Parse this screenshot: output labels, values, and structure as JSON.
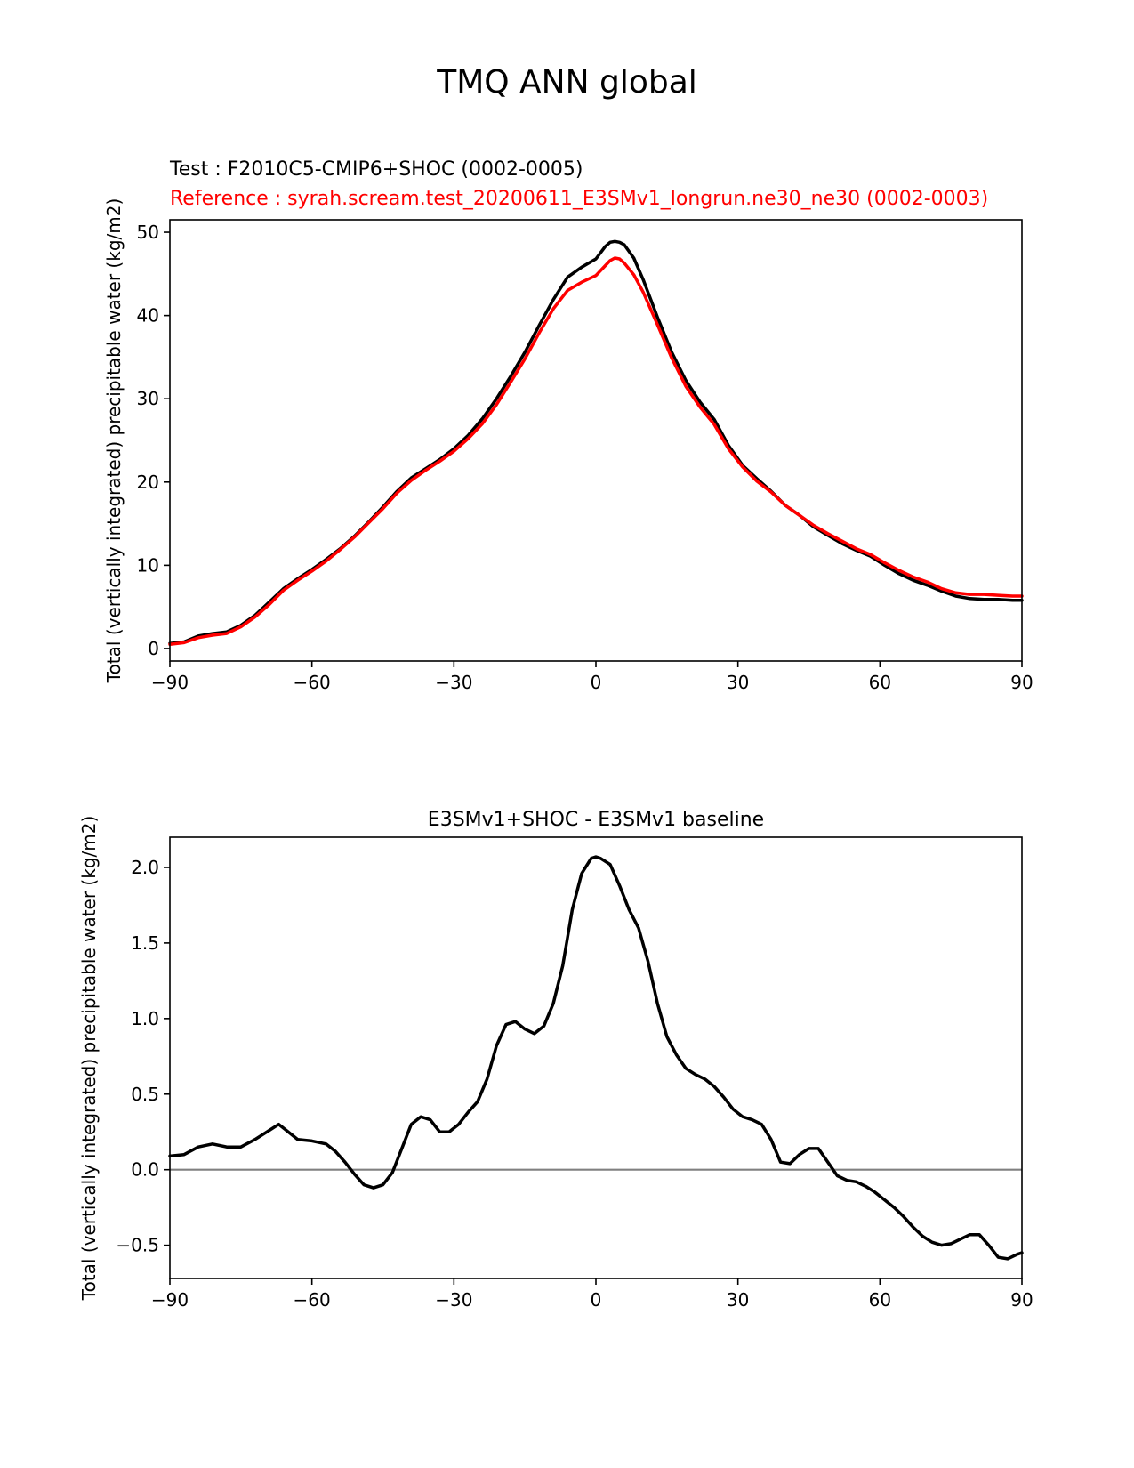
{
  "figure": {
    "title": "TMQ ANN global"
  },
  "colors": {
    "test": "#000000",
    "reference": "#ff0000",
    "zero_line": "#808080",
    "axes": "#000000"
  },
  "chart_data": [
    {
      "type": "line",
      "title_test": "Test : F2010C5-CMIP6+SHOC (0002-0005)",
      "title_reference": "Reference : syrah.scream.test_20200611_E3SMv1_longrun.ne30_ne30 (0002-0003)",
      "xlabel": "",
      "ylabel": "Total (vertically integrated) precipitable water (kg/m2)",
      "xlim": [
        -90,
        90
      ],
      "ylim": [
        -1.5,
        51.5
      ],
      "xticks": [
        -90,
        -60,
        -30,
        0,
        30,
        60,
        90
      ],
      "xtick_labels": [
        "−90",
        "−60",
        "−30",
        "0",
        "30",
        "60",
        "90"
      ],
      "yticks": [
        0,
        10,
        20,
        30,
        40,
        50
      ],
      "ytick_labels": [
        "0",
        "10",
        "20",
        "30",
        "40",
        "50"
      ],
      "series": [
        {
          "name": "Test",
          "color": "#000000",
          "x": [
            -90,
            -87,
            -84,
            -81,
            -78,
            -75,
            -72,
            -69,
            -66,
            -63,
            -60,
            -57,
            -54,
            -51,
            -48,
            -45,
            -42,
            -39,
            -36,
            -33,
            -30,
            -27,
            -24,
            -21,
            -18,
            -15,
            -12,
            -9,
            -6,
            -3,
            0,
            2,
            3,
            4,
            5,
            6,
            8,
            10,
            13,
            16,
            19,
            22,
            25,
            28,
            31,
            34,
            37,
            40,
            43,
            46,
            49,
            52,
            55,
            58,
            61,
            64,
            67,
            70,
            73,
            76,
            79,
            82,
            85,
            88,
            90
          ],
          "y": [
            0.6,
            0.8,
            1.5,
            1.8,
            2.0,
            2.8,
            4.0,
            5.6,
            7.2,
            8.4,
            9.5,
            10.7,
            12.0,
            13.5,
            15.2,
            17.0,
            18.9,
            20.5,
            21.6,
            22.7,
            24.0,
            25.6,
            27.6,
            30.0,
            32.7,
            35.6,
            38.8,
            41.9,
            44.6,
            45.8,
            46.8,
            48.3,
            48.8,
            48.9,
            48.8,
            48.5,
            46.9,
            44.3,
            39.8,
            35.6,
            32.2,
            29.6,
            27.5,
            24.4,
            22.0,
            20.4,
            18.9,
            17.2,
            16.0,
            14.6,
            13.6,
            12.6,
            11.8,
            11.1,
            10.0,
            9.0,
            8.2,
            7.6,
            6.9,
            6.3,
            6.0,
            5.9,
            5.9,
            5.8,
            5.8
          ]
        },
        {
          "name": "Reference",
          "color": "#ff0000",
          "x": [
            -90,
            -87,
            -84,
            -81,
            -78,
            -75,
            -72,
            -69,
            -66,
            -63,
            -60,
            -57,
            -54,
            -51,
            -48,
            -45,
            -42,
            -39,
            -36,
            -33,
            -30,
            -27,
            -24,
            -21,
            -18,
            -15,
            -12,
            -9,
            -6,
            -3,
            0,
            2,
            3,
            4,
            5,
            6,
            8,
            10,
            13,
            16,
            19,
            22,
            25,
            28,
            31,
            34,
            37,
            40,
            43,
            46,
            49,
            52,
            55,
            58,
            61,
            64,
            67,
            70,
            73,
            76,
            79,
            82,
            85,
            88,
            90
          ],
          "y": [
            0.5,
            0.7,
            1.3,
            1.6,
            1.8,
            2.6,
            3.8,
            5.3,
            7.0,
            8.2,
            9.3,
            10.5,
            11.9,
            13.4,
            15.1,
            16.8,
            18.7,
            20.2,
            21.4,
            22.5,
            23.7,
            25.2,
            27.0,
            29.3,
            32.0,
            34.8,
            37.9,
            40.8,
            43.0,
            44.0,
            44.8,
            46.0,
            46.6,
            46.9,
            46.8,
            46.3,
            44.9,
            42.8,
            38.9,
            34.9,
            31.5,
            29.0,
            26.9,
            24.0,
            21.8,
            20.1,
            18.8,
            17.2,
            16.0,
            14.8,
            13.8,
            12.9,
            12.0,
            11.3,
            10.3,
            9.4,
            8.6,
            8.0,
            7.2,
            6.7,
            6.5,
            6.5,
            6.4,
            6.3,
            6.3
          ]
        }
      ]
    },
    {
      "type": "line",
      "title": "E3SMv1+SHOC - E3SMv1 baseline",
      "xlabel": "",
      "ylabel": "Total (vertically integrated) precipitable water (kg/m2)",
      "xlim": [
        -90,
        90
      ],
      "ylim": [
        -0.72,
        2.2
      ],
      "xticks": [
        -90,
        -60,
        -30,
        0,
        30,
        60,
        90
      ],
      "xtick_labels": [
        "−90",
        "−60",
        "−30",
        "0",
        "30",
        "60",
        "90"
      ],
      "yticks": [
        -0.5,
        0.0,
        0.5,
        1.0,
        1.5,
        2.0
      ],
      "ytick_labels": [
        "−0.5",
        "0.0",
        "0.5",
        "1.0",
        "1.5",
        "2.0"
      ],
      "zero_line": 0.0,
      "series": [
        {
          "name": "E3SMv1+SHOC - E3SMv1",
          "color": "#000000",
          "x": [
            -90,
            -87,
            -84,
            -81,
            -78,
            -75,
            -72,
            -69,
            -67,
            -65,
            -63,
            -60,
            -57,
            -55,
            -53,
            -51,
            -49,
            -47,
            -45,
            -43,
            -41,
            -39,
            -37,
            -35,
            -33,
            -31,
            -29,
            -27,
            -25,
            -23,
            -21,
            -19,
            -17,
            -15,
            -13,
            -11,
            -9,
            -7,
            -5,
            -3,
            -1,
            0,
            1,
            3,
            5,
            7,
            9,
            11,
            13,
            15,
            17,
            19,
            21,
            23,
            25,
            27,
            29,
            31,
            33,
            35,
            37,
            39,
            41,
            43,
            45,
            47,
            49,
            51,
            53,
            55,
            57,
            59,
            61,
            63,
            65,
            67,
            69,
            71,
            73,
            75,
            77,
            79,
            81,
            83,
            85,
            87,
            89,
            90
          ],
          "y": [
            0.09,
            0.1,
            0.15,
            0.17,
            0.15,
            0.15,
            0.2,
            0.26,
            0.3,
            0.25,
            0.2,
            0.19,
            0.17,
            0.12,
            0.05,
            -0.03,
            -0.1,
            -0.12,
            -0.1,
            -0.02,
            0.14,
            0.3,
            0.35,
            0.33,
            0.25,
            0.25,
            0.3,
            0.38,
            0.45,
            0.6,
            0.82,
            0.96,
            0.98,
            0.93,
            0.9,
            0.95,
            1.1,
            1.35,
            1.72,
            1.96,
            2.06,
            2.07,
            2.06,
            2.02,
            1.88,
            1.72,
            1.6,
            1.38,
            1.1,
            0.88,
            0.76,
            0.67,
            0.63,
            0.6,
            0.55,
            0.48,
            0.4,
            0.35,
            0.33,
            0.3,
            0.2,
            0.05,
            0.04,
            0.1,
            0.14,
            0.14,
            0.05,
            -0.04,
            -0.07,
            -0.08,
            -0.11,
            -0.15,
            -0.2,
            -0.25,
            -0.31,
            -0.38,
            -0.44,
            -0.48,
            -0.5,
            -0.49,
            -0.46,
            -0.43,
            -0.43,
            -0.5,
            -0.58,
            -0.59,
            -0.56,
            -0.55
          ]
        }
      ]
    }
  ]
}
